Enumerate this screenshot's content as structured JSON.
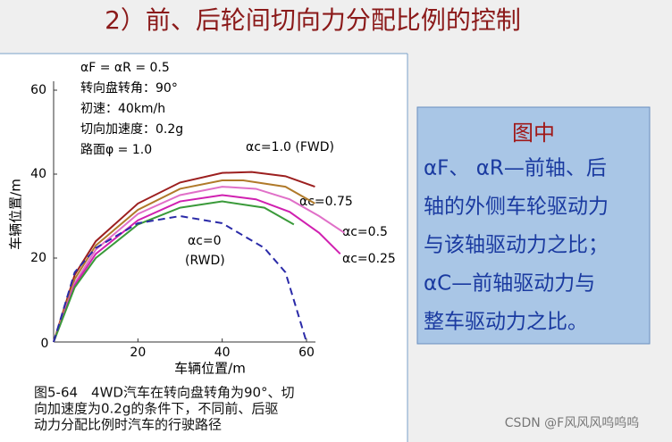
{
  "title": "2）前、后轮间切向力分配比例的控制",
  "side_box": {
    "heading": "图中",
    "lines": [
      "αF、 αR—前轴、后",
      "轴的外侧车轮驱动力",
      "与该轴驱动力之比；",
      "αC—前轴驱动力与",
      "整车驱动力之比。"
    ]
  },
  "caption": [
    "图5-64　4WD汽车在转向盘转角为90°、切",
    "向加速度为0.2g的条件下，不同前、后驱",
    "动力分配比例时汽车的行驶路径"
  ],
  "watermark": "CSDN @F风风风呜呜呜",
  "chart_data": {
    "type": "line",
    "x_label": "车辆位置/m",
    "y_label": "车辆位置/m",
    "conditions": [
      "αF = αR = 0.5",
      "转向盘转角：90°",
      "初速：40km/h",
      "切向加速度：0.2g",
      "路面φ = 1.0"
    ],
    "annotations": [
      "αc=1.0 (FWD)",
      "αc=0.75",
      "αc=0.5",
      "αc=0.25",
      "αc=0",
      "(RWD)"
    ],
    "xlim": [
      0,
      60
    ],
    "ylim": [
      0,
      60
    ],
    "xticks": [
      0,
      20,
      40,
      60
    ],
    "yticks": [
      20,
      40,
      60
    ],
    "series": [
      {
        "color": "#9c1f1f",
        "x": [
          0,
          5,
          10,
          20,
          30,
          40,
          47,
          55,
          62
        ],
        "values": [
          0,
          16,
          24,
          33,
          38,
          40.3,
          40.5,
          39.5,
          37
        ]
      },
      {
        "color": "#b07a2a",
        "x": [
          0,
          5,
          10,
          20,
          30,
          40,
          45,
          55,
          62
        ],
        "values": [
          0,
          15,
          23,
          31.5,
          36.5,
          38.5,
          38.5,
          37,
          33
        ]
      },
      {
        "color": "#e070c8",
        "x": [
          0,
          5,
          10,
          20,
          30,
          40,
          48,
          56,
          63,
          69
        ],
        "values": [
          0,
          14,
          22,
          30.5,
          35,
          37,
          36.5,
          34,
          30,
          26
        ]
      },
      {
        "color": "#d020b0",
        "x": [
          0,
          5,
          10,
          20,
          30,
          40,
          48,
          56,
          63,
          68
        ],
        "values": [
          0,
          13.5,
          21,
          29,
          33.5,
          35,
          34,
          31,
          26,
          21
        ]
      },
      {
        "color": "#3a9a3a",
        "x": [
          0,
          5,
          10,
          20,
          30,
          40,
          50,
          57
        ],
        "values": [
          0,
          13,
          20,
          28,
          32,
          33.5,
          32,
          28
        ]
      },
      {
        "color": "#2a2aa8",
        "dashed": true,
        "x": [
          0,
          5,
          10,
          20,
          30,
          40,
          50,
          55,
          60
        ],
        "values": [
          0,
          16.6,
          22.4,
          28.3,
          30,
          28.3,
          22.4,
          16.6,
          0
        ]
      }
    ]
  }
}
